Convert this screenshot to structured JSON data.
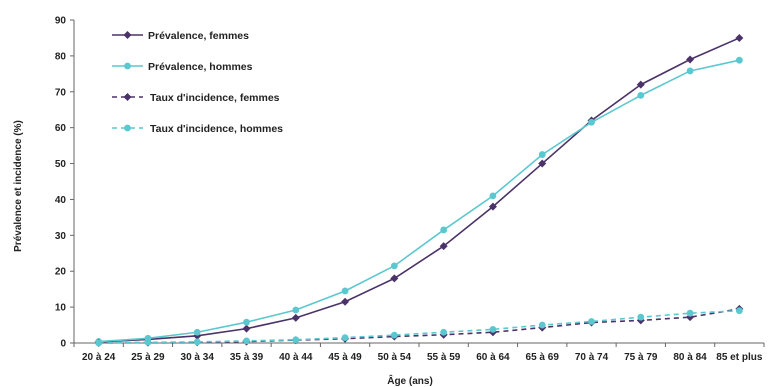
{
  "chart_data": {
    "type": "line",
    "title": "",
    "xlabel": "Âge (ans)",
    "ylabel": "Prévalence et incidence (%)",
    "ylim": [
      0,
      90
    ],
    "yticks": [
      0,
      10,
      20,
      30,
      40,
      50,
      60,
      70,
      80,
      90
    ],
    "grid": false,
    "legend_position": "top-left",
    "categories": [
      "20 à 24",
      "25 à 29",
      "30 à 34",
      "35 à 39",
      "40 à 44",
      "45 à 49",
      "50 à 54",
      "55 à 59",
      "60 à 64",
      "65 à 69",
      "70 à 74",
      "75 à 79",
      "80 à 84",
      "85 et plus"
    ],
    "series": [
      {
        "name": "Prévalence, femmes",
        "color": "#4b3369",
        "marker": "diamond",
        "dashed": false,
        "values": [
          0.3,
          1.0,
          2.0,
          4.0,
          7.0,
          11.5,
          18.0,
          27.0,
          38.0,
          50.0,
          62.0,
          72.0,
          79.0,
          85.0
        ]
      },
      {
        "name": "Prévalence, hommes",
        "color": "#5bc8d0",
        "marker": "circle",
        "dashed": false,
        "values": [
          0.4,
          1.3,
          3.0,
          5.8,
          9.2,
          14.5,
          21.5,
          31.5,
          41.0,
          52.5,
          61.5,
          69.0,
          75.8,
          78.8
        ]
      },
      {
        "name": "Taux d'incidence, femmes",
        "color": "#4b3369",
        "marker": "diamond",
        "dashed": true,
        "values": [
          0.0,
          0.1,
          0.2,
          0.4,
          0.8,
          1.2,
          1.8,
          2.3,
          3.0,
          4.3,
          5.7,
          6.3,
          7.2,
          9.5
        ]
      },
      {
        "name": "Taux d'incidence, hommes",
        "color": "#5bc8d0",
        "marker": "circle",
        "dashed": true,
        "values": [
          0.0,
          0.2,
          0.3,
          0.6,
          0.9,
          1.5,
          2.2,
          3.0,
          3.8,
          5.0,
          6.0,
          7.2,
          8.3,
          9.0
        ]
      }
    ]
  }
}
